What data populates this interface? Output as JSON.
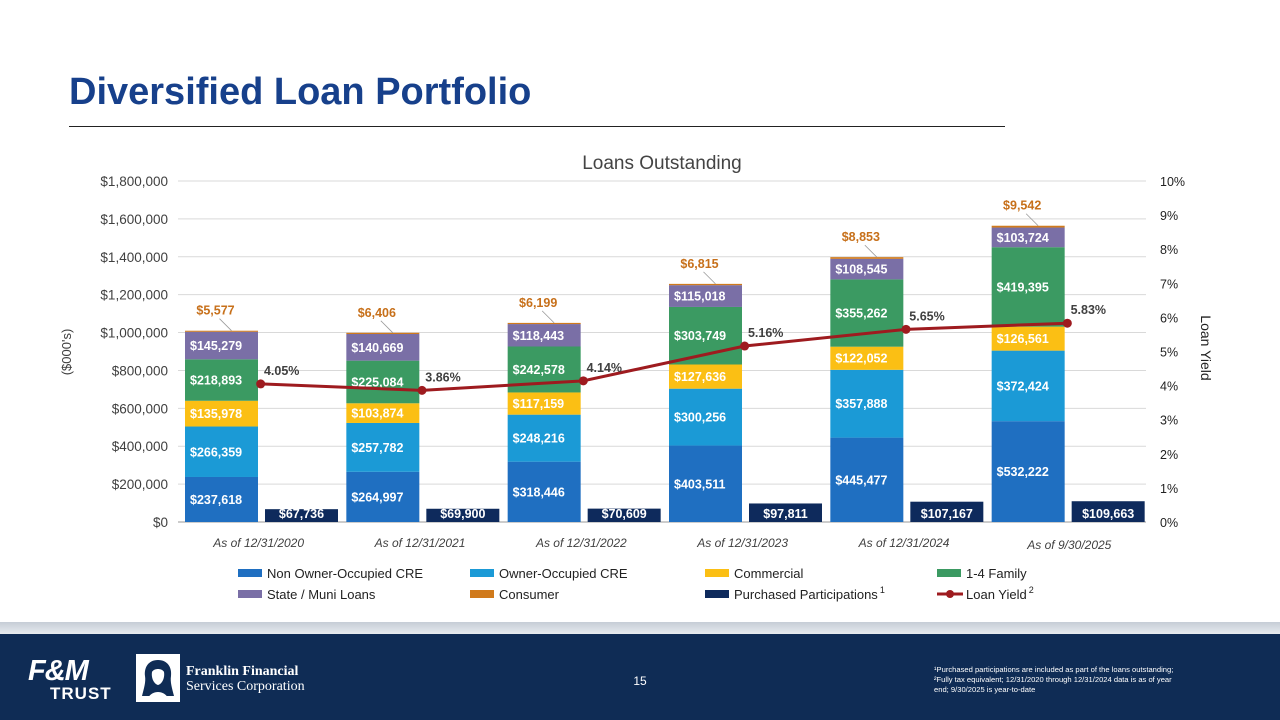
{
  "page": {
    "title": "Diversified Loan Portfolio",
    "page_number": "15",
    "footnote_line1": "¹Purchased participations are included as part of the loans outstanding;",
    "footnote_line2": "²Fully tax equivalent; 12/31/2020 through 12/31/2024 data is as of year",
    "footnote_line3": "end; 9/30/2025 is year-to-date",
    "logo_fm_line1": "F&M",
    "logo_fm_line2": "TRUST",
    "logo_ff_line1": "Franklin Financial",
    "logo_ff_line2": "Services Corporation"
  },
  "chart_data": {
    "type": "bar",
    "stacked": true,
    "title": "Loans Outstanding",
    "ylabel": "($000's)",
    "y2label": "Loan Yield",
    "ylim": [
      0,
      1800000
    ],
    "y2lim": [
      0,
      10
    ],
    "yticks": [
      "$0",
      "$200,000",
      "$400,000",
      "$600,000",
      "$800,000",
      "$1,000,000",
      "$1,200,000",
      "$1,400,000",
      "$1,600,000",
      "$1,800,000"
    ],
    "y2ticks": [
      "0%",
      "1%",
      "2%",
      "3%",
      "4%",
      "5%",
      "6%",
      "7%",
      "8%",
      "9%",
      "10%"
    ],
    "categories": [
      "As of 12/31/2020",
      "As of 12/31/2021",
      "As of 12/31/2022",
      "As of 12/31/2023",
      "As of 12/31/2024",
      "As of 9/30/2025"
    ],
    "series": [
      {
        "name": "Non Owner-Occupied CRE",
        "color": "#1f6fc1",
        "values": [
          237618,
          264997,
          318446,
          403511,
          445477,
          532222
        ],
        "labels": [
          "$237,618",
          "$264,997",
          "$318,446",
          "$403,511",
          "$445,477",
          "$532,222"
        ]
      },
      {
        "name": "Owner-Occupied CRE",
        "color": "#1b9ad6",
        "values": [
          266359,
          257782,
          248216,
          300256,
          357888,
          372424
        ],
        "labels": [
          "$266,359",
          "$257,782",
          "$248,216",
          "$300,256",
          "$357,888",
          "$372,424"
        ]
      },
      {
        "name": "Commercial",
        "color": "#fbbf14",
        "values": [
          135978,
          103874,
          117159,
          127636,
          122052,
          126561
        ],
        "labels": [
          "$135,978",
          "$103,874",
          "$117,159",
          "$127,636",
          "$122,052",
          "$126,561"
        ]
      },
      {
        "name": "1-4 Family",
        "color": "#3b9a62",
        "values": [
          218893,
          225084,
          242578,
          303749,
          355262,
          419395
        ],
        "labels": [
          "$218,893",
          "$225,084",
          "$242,578",
          "$303,749",
          "$355,262",
          "$419,395"
        ]
      },
      {
        "name": "State / Muni Loans",
        "color": "#7a6fa6",
        "values": [
          145279,
          140669,
          118443,
          115018,
          108545,
          103724
        ],
        "labels": [
          "$145,279",
          "$140,669",
          "$118,443",
          "$115,018",
          "$108,545",
          "$103,724"
        ]
      },
      {
        "name": "Consumer",
        "color": "#d07a1c",
        "values": [
          5577,
          6406,
          6199,
          6815,
          8853,
          9542
        ],
        "labels": [
          "$5,577",
          "$6,406",
          "$6,199",
          "$6,815",
          "$8,853",
          "$9,542"
        ]
      }
    ],
    "purchased": {
      "name": "Purchased Participations",
      "sup": "1",
      "color": "#0e2a5c",
      "values": [
        67736,
        69900,
        70609,
        97811,
        107167,
        109663
      ],
      "labels": [
        "$67,736",
        "$69,900",
        "$70,609",
        "$97,811",
        "$107,167",
        "$109,663"
      ]
    },
    "yield_line": {
      "name": "Loan Yield",
      "sup": "2",
      "color": "#9e1b1f",
      "values": [
        4.05,
        3.86,
        4.14,
        5.16,
        5.65,
        5.83
      ],
      "labels": [
        "4.05%",
        "3.86%",
        "4.14%",
        "5.16%",
        "5.65%",
        "5.83%"
      ]
    }
  }
}
